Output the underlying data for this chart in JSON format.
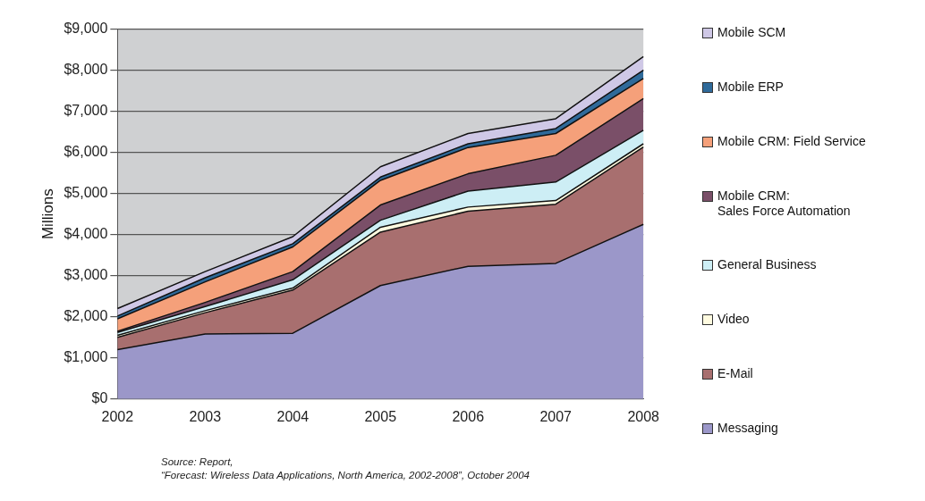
{
  "chart_data": {
    "type": "area",
    "stacked": true,
    "ylabel": "Millions",
    "categories": [
      "2002",
      "2003",
      "2004",
      "2005",
      "2006",
      "2007",
      "2008"
    ],
    "ylim": [
      0,
      9000
    ],
    "yticks": [
      {
        "value": 0,
        "label": "$0"
      },
      {
        "value": 1000,
        "label": "$1,000"
      },
      {
        "value": 2000,
        "label": "$2,000"
      },
      {
        "value": 3000,
        "label": "$3,000"
      },
      {
        "value": 4000,
        "label": "$4,000"
      },
      {
        "value": 5000,
        "label": "$5,000"
      },
      {
        "value": 6000,
        "label": "$6,000"
      },
      {
        "value": 7000,
        "label": "$7,000"
      },
      {
        "value": 8000,
        "label": "$8,000"
      },
      {
        "value": 9000,
        "label": "$9,000"
      }
    ],
    "grid": "y",
    "legend": "right",
    "series": [
      {
        "name": "Messaging",
        "color": "#9b97c9",
        "values": [
          1200,
          1580,
          1600,
          2760,
          3230,
          3300,
          4250
        ]
      },
      {
        "name": "E-Mail",
        "color": "#a86f6f",
        "values": [
          300,
          520,
          1050,
          1300,
          1340,
          1440,
          1880
        ]
      },
      {
        "name": "Video",
        "color": "#fffbe0",
        "values": [
          50,
          50,
          50,
          120,
          100,
          90,
          80
        ]
      },
      {
        "name": "General Business",
        "color": "#cdeef5",
        "values": [
          70,
          100,
          200,
          170,
          390,
          450,
          330
        ]
      },
      {
        "name": "Mobile CRM:\nSales Force Automation",
        "color": "#7a4f68",
        "values": [
          30,
          100,
          200,
          370,
          420,
          650,
          770
        ]
      },
      {
        "name": "Mobile CRM: Field Service",
        "color": "#f5a07a",
        "values": [
          300,
          500,
          600,
          600,
          640,
          530,
          490
        ]
      },
      {
        "name": "Mobile ERP",
        "color": "#2f6a9a",
        "values": [
          70,
          100,
          80,
          80,
          90,
          120,
          200
        ]
      },
      {
        "name": "Mobile SCM",
        "color": "#cfc8e6",
        "values": [
          180,
          150,
          170,
          250,
          250,
          240,
          330
        ]
      }
    ],
    "annotations": [
      "Source: Report,",
      "“Forecast: Wireless Data  Applications, North America, 2002-2008”, October 2004"
    ]
  }
}
